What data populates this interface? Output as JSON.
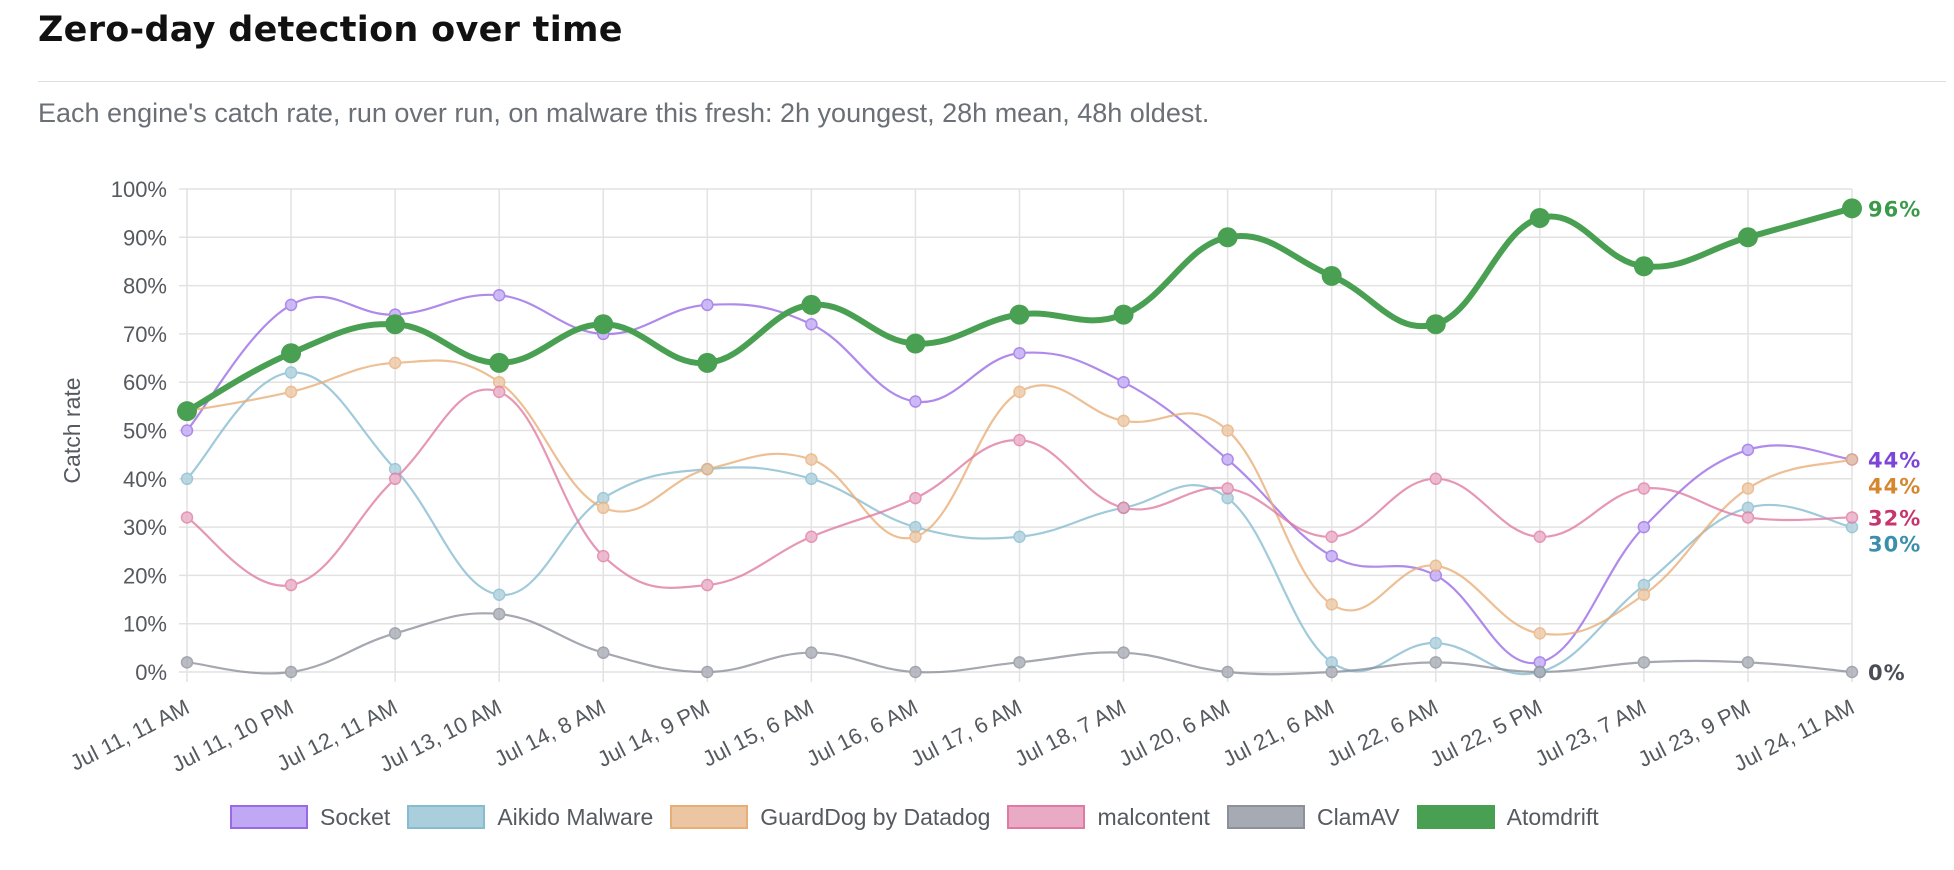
{
  "header": {
    "title": "Zero-day detection over time",
    "subtitle": "Each engine's catch rate, run over run, on malware this fresh: 2h youngest, 28h mean, 48h oldest."
  },
  "chart_data": {
    "type": "line",
    "ylabel": "Catch rate",
    "xlabel": "",
    "ylim": [
      0,
      100
    ],
    "y_ticks": [
      "0%",
      "10%",
      "20%",
      "30%",
      "40%",
      "50%",
      "60%",
      "70%",
      "80%",
      "90%",
      "100%"
    ],
    "grid": true,
    "legend_position": "bottom",
    "categories": [
      "Jul 11, 11 AM",
      "Jul 11, 10 PM",
      "Jul 12, 11 AM",
      "Jul 13, 10 AM",
      "Jul 14, 8 AM",
      "Jul 14, 9 PM",
      "Jul 15, 6 AM",
      "Jul 16, 6 AM",
      "Jul 17, 6 AM",
      "Jul 18, 7 AM",
      "Jul 20, 6 AM",
      "Jul 21, 6 AM",
      "Jul 22, 6 AM",
      "Jul 22, 5 PM",
      "Jul 23, 7 AM",
      "Jul 23, 9 PM",
      "Jul 24, 11 AM"
    ],
    "series": [
      {
        "name": "Socket",
        "color": "#9a6ae6",
        "fill": "#c0a8f5",
        "label_color": "#7b45d8",
        "end_label": "44%",
        "values": [
          50,
          76,
          74,
          78,
          70,
          76,
          72,
          56,
          66,
          60,
          44,
          24,
          20,
          2,
          30,
          46,
          44
        ]
      },
      {
        "name": "Aikido Malware",
        "color": "#86bcd0",
        "fill": "#aacedc",
        "label_color": "#3a8fad",
        "end_label": "30%",
        "values": [
          40,
          62,
          42,
          16,
          36,
          42,
          40,
          30,
          28,
          34,
          36,
          2,
          6,
          0,
          18,
          34,
          30
        ]
      },
      {
        "name": "GuardDog by Datadog",
        "color": "#e8ae78",
        "fill": "#ecc6a2",
        "label_color": "#d4872e",
        "end_label": "44%",
        "values": [
          54,
          58,
          64,
          60,
          34,
          42,
          44,
          28,
          58,
          52,
          50,
          14,
          22,
          8,
          16,
          38,
          44
        ]
      },
      {
        "name": "malcontent",
        "color": "#e07aa2",
        "fill": "#e8aac4",
        "label_color": "#c8356e",
        "end_label": "32%",
        "values": [
          32,
          18,
          40,
          58,
          24,
          18,
          28,
          36,
          48,
          34,
          38,
          28,
          40,
          28,
          38,
          32,
          32
        ]
      },
      {
        "name": "ClamAV",
        "color": "#8c909a",
        "fill": "#a6aab3",
        "label_color": "#4a4d55",
        "end_label": "0%",
        "values": [
          2,
          0,
          8,
          12,
          4,
          0,
          4,
          0,
          2,
          4,
          0,
          0,
          2,
          0,
          2,
          2,
          0
        ]
      },
      {
        "name": "Atomdrift",
        "color": "#4aa052",
        "fill": "#4aa052",
        "label_color": "#3a9a4a",
        "end_label": "96%",
        "values": [
          54,
          66,
          72,
          64,
          72,
          64,
          76,
          68,
          74,
          74,
          90,
          82,
          72,
          94,
          84,
          90,
          96
        ]
      }
    ]
  }
}
